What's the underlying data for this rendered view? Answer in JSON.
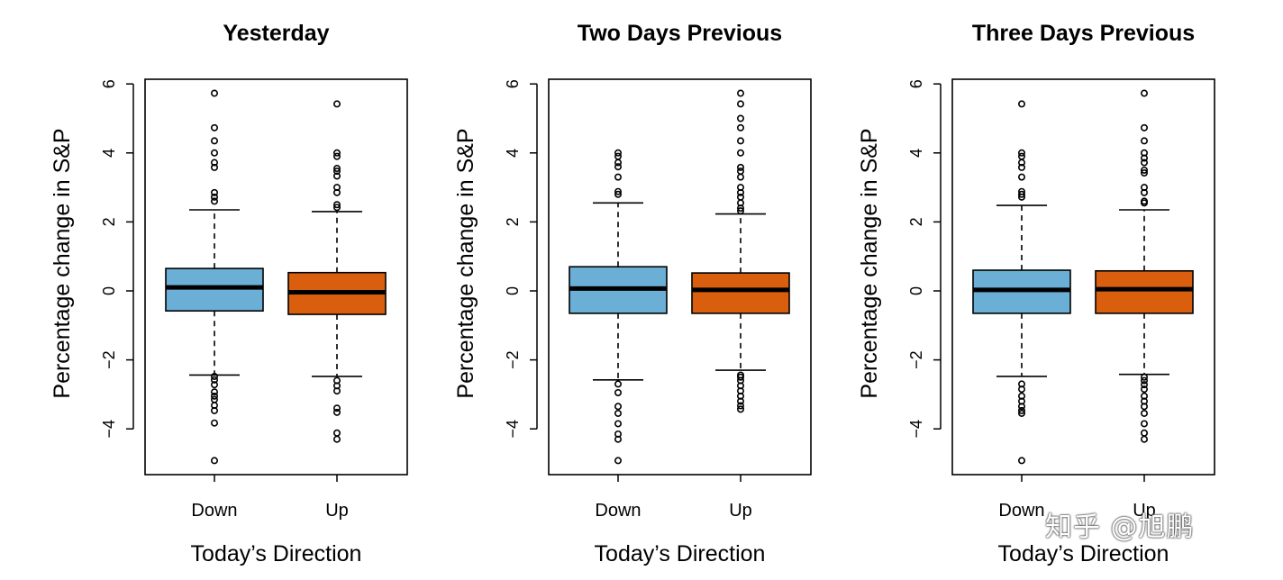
{
  "chart_data": [
    {
      "type": "boxplot",
      "title": "Yesterday",
      "xlabel": "Today’s Direction",
      "ylabel": "Percentage change in S&P",
      "ylim": [
        -5.3,
        6.2
      ],
      "yticks": [
        6,
        4,
        2,
        0,
        -2,
        -4
      ],
      "ytick_labels": [
        "6",
        "4",
        "2",
        "0",
        "−2",
        "−4"
      ],
      "categories": [
        "Down",
        "Up"
      ],
      "colors": [
        "#6baed6",
        "#d95f0e"
      ],
      "boxes": [
        {
          "category": "Down",
          "whisker_low": -2.44,
          "q1": -0.58,
          "median": 0.1,
          "q3": 0.65,
          "whisker_high": 2.35,
          "outliers": [
            5.73,
            4.73,
            4.35,
            4.0,
            3.72,
            3.58,
            2.85,
            2.72,
            2.6,
            -2.48,
            -2.58,
            -2.72,
            -2.93,
            -3.05,
            -3.15,
            -3.32,
            -3.47,
            -3.83,
            -4.92
          ]
        },
        {
          "category": "Up",
          "whisker_low": -2.48,
          "q1": -0.68,
          "median": -0.04,
          "q3": 0.53,
          "whisker_high": 2.3,
          "outliers": [
            5.42,
            4.0,
            3.9,
            3.55,
            3.47,
            3.33,
            3.0,
            2.85,
            2.5,
            2.42,
            -2.6,
            -2.75,
            -2.9,
            -3.4,
            -3.52,
            -4.12,
            -4.3
          ]
        }
      ]
    },
    {
      "type": "boxplot",
      "title": "Two Days Previous",
      "xlabel": "Today’s Direction",
      "ylabel": "Percentage change in S&P",
      "ylim": [
        -5.3,
        6.2
      ],
      "yticks": [
        6,
        4,
        2,
        0,
        -2,
        -4
      ],
      "ytick_labels": [
        "6",
        "4",
        "2",
        "0",
        "−2",
        "−4"
      ],
      "categories": [
        "Down",
        "Up"
      ],
      "colors": [
        "#6baed6",
        "#d95f0e"
      ],
      "boxes": [
        {
          "category": "Down",
          "whisker_low": -2.58,
          "q1": -0.65,
          "median": 0.07,
          "q3": 0.7,
          "whisker_high": 2.55,
          "outliers": [
            4.0,
            3.9,
            3.72,
            3.6,
            3.3,
            2.88,
            2.8,
            -2.7,
            -2.95,
            -3.35,
            -3.55,
            -3.85,
            -4.15,
            -4.3,
            -4.92
          ]
        },
        {
          "category": "Up",
          "whisker_low": -2.3,
          "q1": -0.65,
          "median": 0.03,
          "q3": 0.52,
          "whisker_high": 2.23,
          "outliers": [
            5.73,
            5.42,
            5.0,
            4.73,
            4.35,
            4.0,
            3.58,
            3.47,
            3.3,
            3.0,
            2.85,
            2.72,
            2.55,
            2.4,
            2.32,
            -2.44,
            -2.5,
            -2.6,
            -2.75,
            -2.9,
            -3.05,
            -3.2,
            -3.33,
            -3.43
          ]
        }
      ]
    },
    {
      "type": "boxplot",
      "title": "Three Days Previous",
      "xlabel": "Today’s Direction",
      "ylabel": "Percentage change in S&P",
      "ylim": [
        -5.3,
        6.2
      ],
      "yticks": [
        6,
        4,
        2,
        0,
        -2,
        -4
      ],
      "ytick_labels": [
        "6",
        "4",
        "2",
        "0",
        "−2",
        "−4"
      ],
      "categories": [
        "Down",
        "Up"
      ],
      "colors": [
        "#6baed6",
        "#d95f0e"
      ],
      "boxes": [
        {
          "category": "Down",
          "whisker_low": -2.48,
          "q1": -0.65,
          "median": 0.03,
          "q3": 0.6,
          "whisker_high": 2.48,
          "outliers": [
            5.42,
            4.0,
            3.9,
            3.72,
            3.58,
            3.3,
            2.88,
            2.8,
            2.72,
            -2.7,
            -2.85,
            -3.05,
            -3.2,
            -3.35,
            -3.47,
            -3.55,
            -4.92
          ]
        },
        {
          "category": "Up",
          "whisker_low": -2.42,
          "q1": -0.65,
          "median": 0.05,
          "q3": 0.58,
          "whisker_high": 2.35,
          "outliers": [
            5.73,
            4.73,
            4.35,
            4.0,
            3.85,
            3.72,
            3.5,
            3.42,
            3.0,
            2.85,
            2.6,
            2.55,
            -2.5,
            -2.6,
            -2.72,
            -2.85,
            -3.05,
            -3.2,
            -3.35,
            -3.55,
            -3.85,
            -4.12,
            -4.3
          ]
        }
      ]
    }
  ],
  "watermark": "知乎 @旭鹏"
}
